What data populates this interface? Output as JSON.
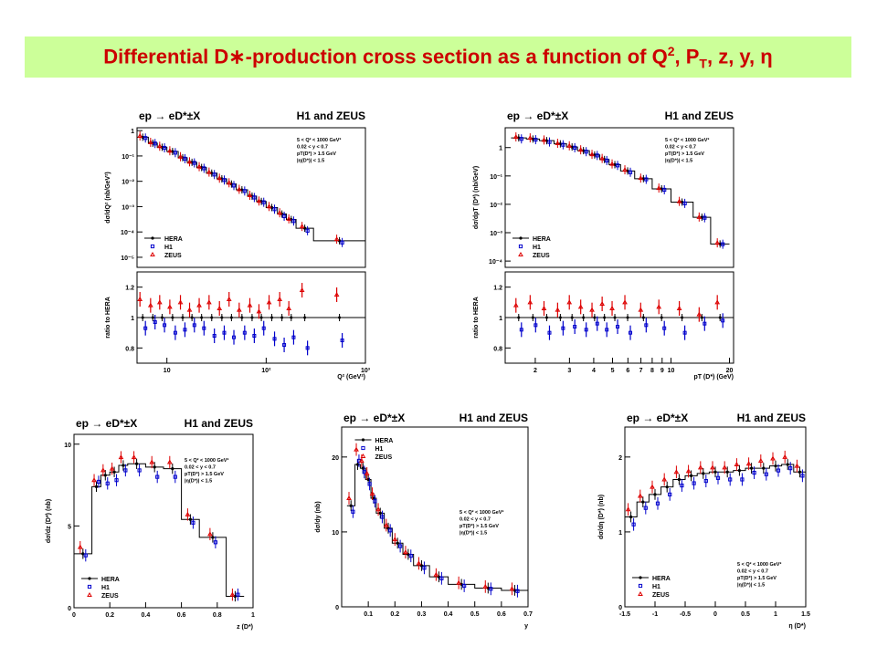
{
  "slide": {
    "title": {
      "part1": "Differential D",
      "star": "∗",
      "part2": "-production cross section as a function of  Q",
      "q_sup": "2",
      "part3": ", P",
      "pt_sub": "T",
      "part4": ", z, y, η"
    }
  },
  "colors": {
    "title_bg": "#ccff99",
    "title_text": "#cc0000",
    "hera": "#000000",
    "h1": "#0000cc",
    "zeus": "#dd0000"
  },
  "chart_data": [
    {
      "id": "q2",
      "type": "scatter",
      "title_left": "ep → eD*±X",
      "title_right": "H1 and ZEUS",
      "xlabel": "Q² (GeV²)",
      "ylabel": "dσ/dQ² (nb/GeV²)",
      "ratio_ylabel": "ratio to HERA",
      "xscale": "log",
      "yscale": "log",
      "xlim": [
        5,
        1000
      ],
      "ylim": [
        4e-06,
        1.3
      ],
      "xticks": [
        {
          "v": 10,
          "label": "10"
        },
        {
          "v": 100,
          "label": "10²"
        },
        {
          "v": 1000,
          "label": "10³"
        }
      ],
      "yticks": [
        {
          "v": 1,
          "label": "1"
        },
        {
          "v": 0.1,
          "label": "10⁻¹"
        },
        {
          "v": 0.01,
          "label": "10⁻²"
        },
        {
          "v": 0.001,
          "label": "10⁻³"
        },
        {
          "v": 0.0001,
          "label": "10⁻⁴"
        },
        {
          "v": 1e-05,
          "label": "10⁻⁵"
        }
      ],
      "cuts": [
        "5 < Q² < 1000 GeV²",
        "0.02 < y < 0.7",
        "pT(D*) > 1.5 GeV",
        "|η(D*)| < 1.5"
      ],
      "cuts_pos": "right",
      "legend": [
        "HERA",
        "H1",
        "ZEUS"
      ],
      "legend_pos": "bottom-left",
      "edges": [
        5,
        6.5,
        8,
        10,
        13,
        16,
        20,
        25,
        32,
        40,
        50,
        65,
        80,
        100,
        130,
        160,
        200,
        300,
        1000
      ],
      "values": [
        0.55,
        0.32,
        0.22,
        0.15,
        0.085,
        0.056,
        0.035,
        0.021,
        0.0125,
        0.0078,
        0.0046,
        0.0026,
        0.0016,
        0.00092,
        0.00051,
        0.00031,
        0.00014,
        4.5e-05
      ],
      "ratio_ylim": [
        0.7,
        1.3
      ],
      "ratio_yticks": [
        0.8,
        1,
        1.2
      ],
      "ratio_h1": [
        0.93,
        0.97,
        0.95,
        0.9,
        0.92,
        0.95,
        0.93,
        0.88,
        0.9,
        0.87,
        0.9,
        0.88,
        0.93,
        0.86,
        0.82,
        0.87,
        0.8,
        0.85
      ],
      "ratio_zeus": [
        1.12,
        1.08,
        1.1,
        1.07,
        1.1,
        1.05,
        1.08,
        1.1,
        1.06,
        1.12,
        1.05,
        1.08,
        1.04,
        1.1,
        1.12,
        1.06,
        1.18,
        1.15
      ]
    },
    {
      "id": "pt",
      "type": "scatter",
      "title_left": "ep → eD*±X",
      "title_right": "H1 and ZEUS",
      "xlabel": "pT (D*) (GeV)",
      "ylabel": "dσ/dpT (D*) (nb/GeV)",
      "ratio_ylabel": "ratio to HERA",
      "xscale": "log",
      "yscale": "log",
      "xlim": [
        1.4,
        21
      ],
      "ylim": [
        6e-05,
        5
      ],
      "xticks": [
        {
          "v": 2,
          "label": "2"
        },
        {
          "v": 3,
          "label": "3"
        },
        {
          "v": 4,
          "label": "4"
        },
        {
          "v": 5,
          "label": "5"
        },
        {
          "v": 6,
          "label": "6"
        },
        {
          "v": 7,
          "label": "7"
        },
        {
          "v": 8,
          "label": "8"
        },
        {
          "v": 9,
          "label": "9"
        },
        {
          "v": 10,
          "label": "10"
        },
        {
          "v": 20,
          "label": "20"
        }
      ],
      "yticks": [
        {
          "v": 1,
          "label": "1"
        },
        {
          "v": 0.1,
          "label": "10⁻¹"
        },
        {
          "v": 0.01,
          "label": "10⁻²"
        },
        {
          "v": 0.001,
          "label": "10⁻³"
        },
        {
          "v": 0.0001,
          "label": "10⁻⁴"
        }
      ],
      "cuts": [
        "5 < Q² < 1000 GeV²",
        "0.02 < y < 0.7",
        "pT(D*) > 1.5 GeV",
        "|η(D*)| < 1.5"
      ],
      "cuts_pos": "right",
      "legend": [
        "HERA",
        "H1",
        "ZEUS"
      ],
      "legend_pos": "bottom-left",
      "edges": [
        1.5,
        1.8,
        2.1,
        2.5,
        2.9,
        3.3,
        3.8,
        4.3,
        4.8,
        5.5,
        6.5,
        8,
        10,
        13,
        16,
        20
      ],
      "values": [
        2.2,
        2.0,
        1.75,
        1.35,
        1.05,
        0.78,
        0.55,
        0.38,
        0.25,
        0.15,
        0.08,
        0.035,
        0.012,
        0.0035,
        0.0004
      ],
      "ratio_ylim": [
        0.7,
        1.3
      ],
      "ratio_yticks": [
        0.8,
        1,
        1.2
      ],
      "ratio_h1": [
        0.92,
        0.95,
        0.9,
        0.93,
        0.94,
        0.92,
        0.96,
        0.92,
        0.94,
        0.9,
        0.95,
        0.93,
        0.9,
        0.96,
        0.98
      ],
      "ratio_zeus": [
        1.08,
        1.1,
        1.06,
        1.05,
        1.1,
        1.07,
        1.05,
        1.09,
        1.06,
        1.1,
        1.05,
        1.07,
        1.06,
        1.02,
        1.1
      ]
    },
    {
      "id": "z",
      "type": "scatter",
      "title_left": "ep → eD*±X",
      "title_right": "H1 and ZEUS",
      "xlabel": "z (D*)",
      "ylabel": "dσ/dz (D*) (nb)",
      "xscale": "linear",
      "yscale": "linear",
      "xlim": [
        0,
        1
      ],
      "ylim": [
        0,
        10.6
      ],
      "xticks": [
        {
          "v": 0,
          "label": "0"
        },
        {
          "v": 0.2,
          "label": "0.2"
        },
        {
          "v": 0.4,
          "label": "0.4"
        },
        {
          "v": 0.6,
          "label": "0.6"
        },
        {
          "v": 0.8,
          "label": "0.8"
        },
        {
          "v": 1,
          "label": "1"
        }
      ],
      "yticks": [
        {
          "v": 0,
          "label": "0"
        },
        {
          "v": 5,
          "label": "5"
        },
        {
          "v": 10,
          "label": "10"
        }
      ],
      "cuts": [
        "5 < Q² < 1000 GeV²",
        "0.02 < y < 0.7",
        "pT(D*) > 1.5 GeV",
        "|η(D*)| < 1.5"
      ],
      "cuts_pos": "right",
      "legend": [
        "HERA",
        "H1",
        "ZEUS"
      ],
      "legend_pos": "bottom-left",
      "edges": [
        0,
        0.1,
        0.15,
        0.2,
        0.25,
        0.3,
        0.4,
        0.5,
        0.6,
        0.7,
        0.85,
        0.95
      ],
      "values": [
        3.3,
        7.4,
        8.1,
        8.3,
        8.7,
        8.8,
        8.6,
        8.5,
        5.4,
        4.3,
        0.7
      ],
      "h1_offsets": [
        -0.1,
        0.3,
        -0.5,
        -0.5,
        -0.3,
        -0.4,
        -0.6,
        -0.5,
        -0.2,
        -0.3,
        0.1
      ],
      "zeus_offsets": [
        0.4,
        0.4,
        0.3,
        0.2,
        0.5,
        0.4,
        0.3,
        0.4,
        0.3,
        0.2,
        0.1
      ]
    },
    {
      "id": "y",
      "type": "scatter",
      "title_left": "ep → eD*±X",
      "title_right": "H1 and ZEUS",
      "xlabel": "y",
      "ylabel": "dσ/dy (nb)",
      "xscale": "linear",
      "yscale": "linear",
      "xlim": [
        0,
        0.7
      ],
      "ylim": [
        0,
        24
      ],
      "xticks": [
        {
          "v": 0.1,
          "label": "0.1"
        },
        {
          "v": 0.2,
          "label": "0.2"
        },
        {
          "v": 0.3,
          "label": "0.3"
        },
        {
          "v": 0.4,
          "label": "0.4"
        },
        {
          "v": 0.5,
          "label": "0.5"
        },
        {
          "v": 0.6,
          "label": "0.6"
        },
        {
          "v": 0.7,
          "label": "0.7"
        }
      ],
      "yticks": [
        {
          "v": 0,
          "label": "0"
        },
        {
          "v": 10,
          "label": "10"
        },
        {
          "v": 20,
          "label": "20"
        }
      ],
      "cuts": [
        "5 < Q² < 1000 GeV²",
        "0.02 < y < 0.7",
        "pT(D*) > 1.5 GeV",
        "|η(D*)| < 1.5"
      ],
      "cuts_pos": "right",
      "legend": [
        "HERA",
        "H1",
        "ZEUS"
      ],
      "legend_pos": "top-left",
      "edges": [
        0.02,
        0.05,
        0.07,
        0.09,
        0.11,
        0.13,
        0.16,
        0.19,
        0.23,
        0.27,
        0.33,
        0.4,
        0.5,
        0.6,
        0.7
      ],
      "values": [
        13.5,
        19,
        18.5,
        17,
        14.5,
        12.5,
        10.5,
        8.5,
        7,
        5.5,
        4,
        3,
        2.5,
        2.2
      ],
      "h1_offsets": [
        -0.8,
        0.5,
        -0.5,
        -0.6,
        -0.4,
        -0.5,
        -0.3,
        -0.4,
        -0.2,
        -0.3,
        -0.2,
        -0.2,
        -0.1,
        -0.1
      ],
      "zeus_offsets": [
        1.0,
        2.0,
        1.0,
        0.8,
        0.6,
        0.5,
        0.4,
        0.5,
        0.3,
        0.3,
        0.3,
        0.2,
        0.2,
        0.2
      ]
    },
    {
      "id": "eta",
      "type": "scatter",
      "title_left": "ep → eD*±X",
      "title_right": "H1 and ZEUS",
      "xlabel": "η (D*)",
      "ylabel": "dσ/dη (D*) (nb)",
      "xscale": "linear",
      "yscale": "linear",
      "xlim": [
        -1.5,
        1.5
      ],
      "ylim": [
        0,
        2.4
      ],
      "xticks": [
        {
          "v": -1.5,
          "label": "-1.5"
        },
        {
          "v": -1,
          "label": "-1"
        },
        {
          "v": -0.5,
          "label": "-0.5"
        },
        {
          "v": 0,
          "label": "0"
        },
        {
          "v": 0.5,
          "label": "0.5"
        },
        {
          "v": 1,
          "label": "1"
        },
        {
          "v": 1.5,
          "label": "1.5"
        }
      ],
      "yticks": [
        {
          "v": 0,
          "label": "0"
        },
        {
          "v": 1,
          "label": "1"
        },
        {
          "v": 2,
          "label": "2"
        }
      ],
      "cuts": [
        "5 < Q² < 1000 GeV²",
        "0.02 < y < 0.7",
        "pT(D*) > 1.5 GeV",
        "|η(D*)| < 1.5"
      ],
      "cuts_pos": "bottom-right",
      "legend": [
        "HERA",
        "H1",
        "ZEUS"
      ],
      "legend_pos": "bottom-left",
      "edges": [
        -1.5,
        -1.3,
        -1.1,
        -0.9,
        -0.7,
        -0.5,
        -0.3,
        -0.1,
        0.1,
        0.3,
        0.5,
        0.7,
        0.9,
        1.1,
        1.3,
        1.5
      ],
      "values": [
        1.2,
        1.4,
        1.5,
        1.6,
        1.7,
        1.75,
        1.78,
        1.8,
        1.8,
        1.82,
        1.85,
        1.85,
        1.88,
        1.9,
        1.8
      ],
      "h1_offsets": [
        -0.1,
        -0.08,
        -0.12,
        -0.1,
        -0.08,
        -0.1,
        -0.1,
        -0.08,
        -0.1,
        -0.12,
        -0.06,
        -0.08,
        -0.06,
        -0.05,
        -0.05
      ],
      "zeus_offsets": [
        0.1,
        0.08,
        0.1,
        0.1,
        0.1,
        0.06,
        0.08,
        0.06,
        0.06,
        0.08,
        0.06,
        0.1,
        0.1,
        0.1,
        0.08
      ]
    }
  ]
}
